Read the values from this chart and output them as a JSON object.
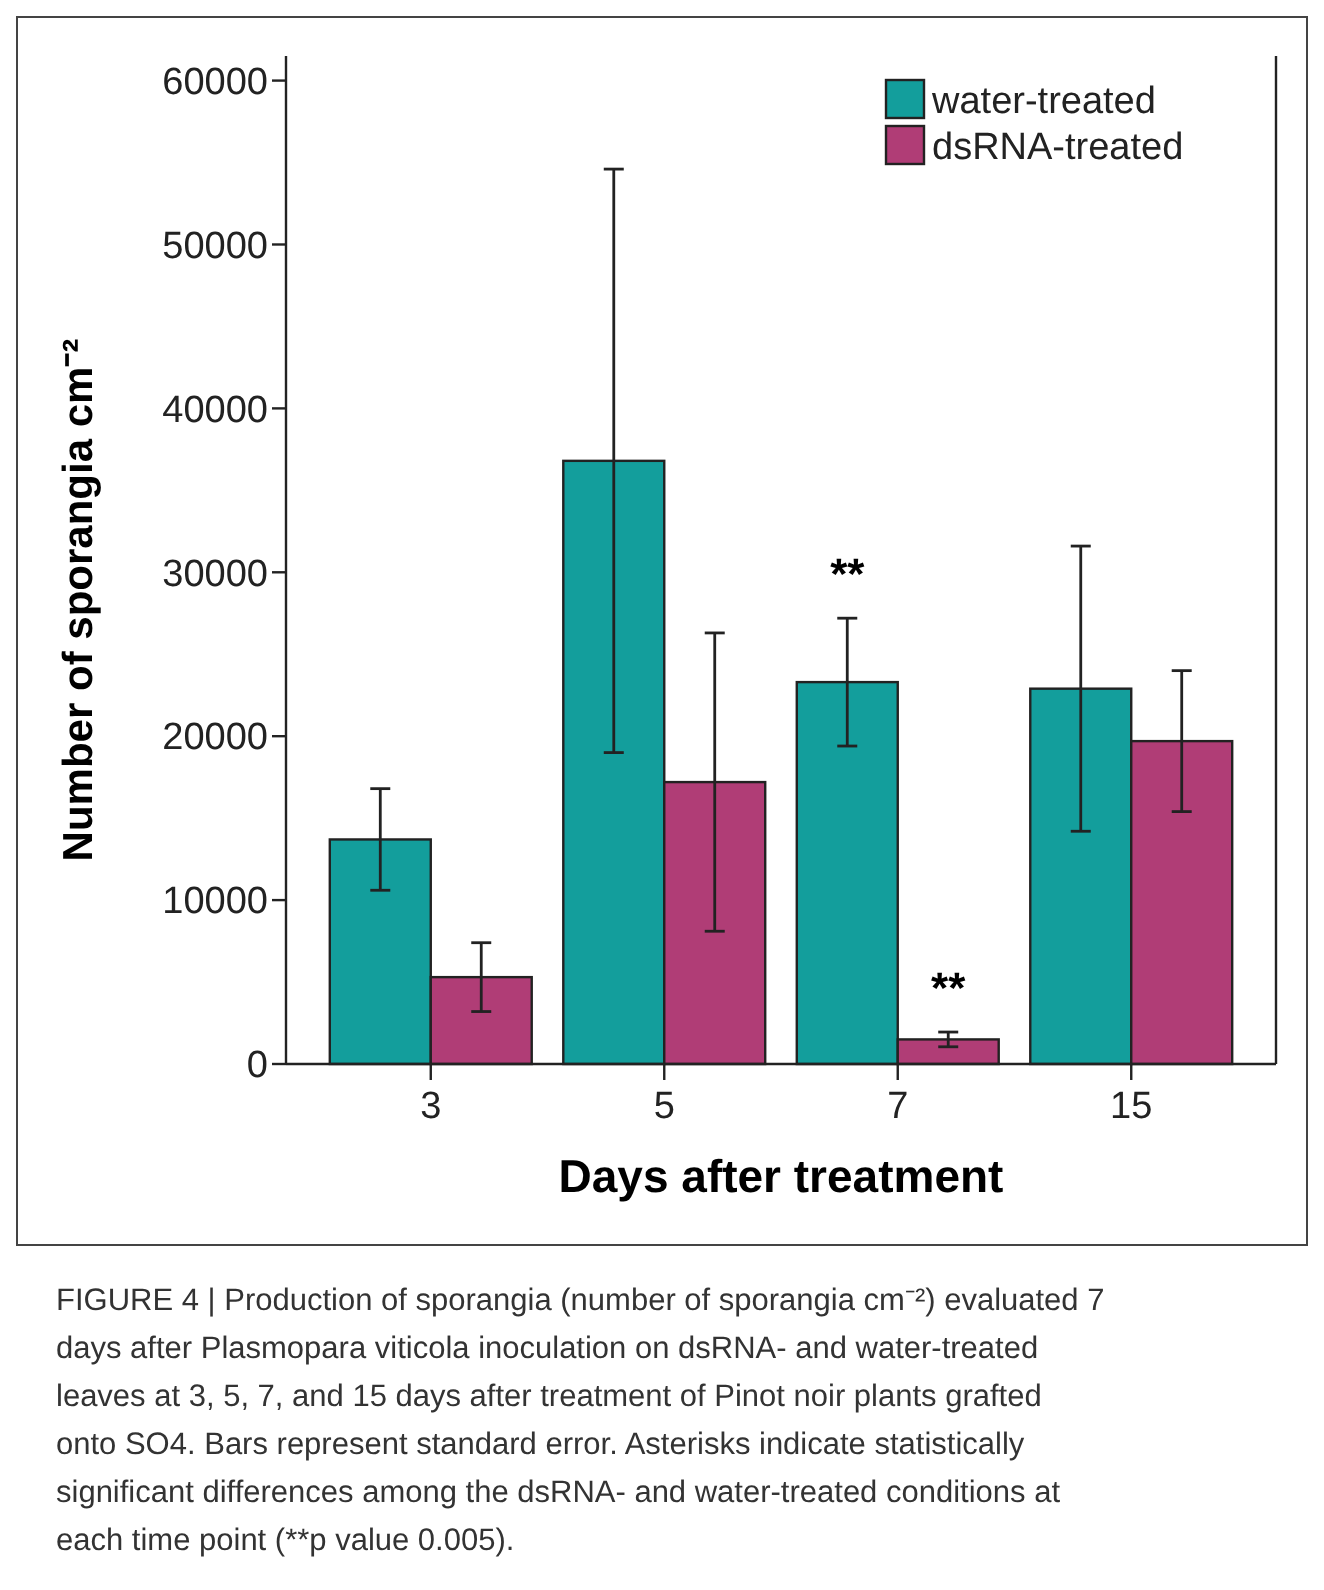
{
  "chart_data": {
    "type": "bar",
    "xlabel": "Days after treatment",
    "ylabel": "Number of sporangia cm⁻²",
    "categories": [
      "3",
      "5",
      "7",
      "15"
    ],
    "series": [
      {
        "name": "water-treated",
        "color": "#139e9c",
        "values": [
          13700,
          36800,
          23300,
          22900
        ],
        "errors": [
          3100,
          17800,
          3900,
          8700
        ]
      },
      {
        "name": "dsRNA-treated",
        "color": "#b03d76",
        "values": [
          5300,
          17200,
          1500,
          19700
        ],
        "errors": [
          2100,
          9100,
          450,
          4300
        ]
      }
    ],
    "ylim": [
      0,
      61500
    ],
    "yticks": [
      0,
      10000,
      20000,
      30000,
      40000,
      50000,
      60000
    ],
    "grid": false,
    "legend": "top right",
    "annotations": [
      {
        "text": "**",
        "x": "7",
        "y": 23300
      },
      {
        "text": "**",
        "x": "7",
        "y": 1500
      },
      "FIGURE 4 | Production of sporangia (number of sporangia cm⁻²) evaluated 7 days after Plasmopara viticola inoculation on dsRNA- and water-treated leaves at 3, 5, 7, and 15 days after treatment of Pinot noir plants grafted onto SO4. Bars represent standard error. Asterisks indicate statistically significant differences among the dsRNA- and water-treated conditions at each time point (**p value 0.005)."
    ]
  }
}
